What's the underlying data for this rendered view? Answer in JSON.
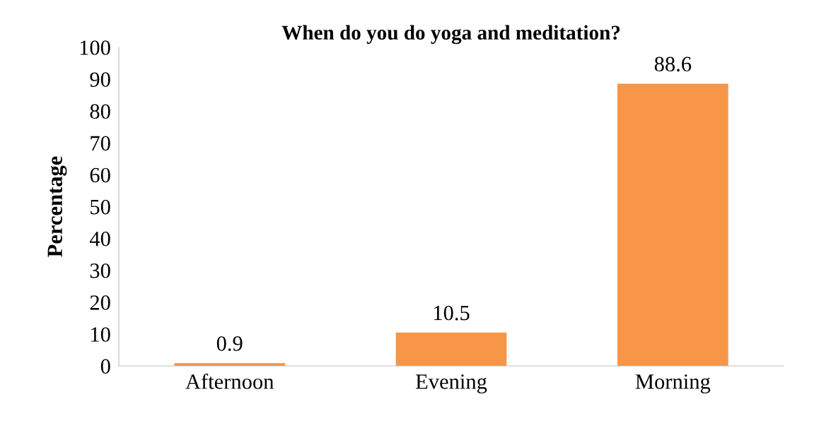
{
  "chart_data": {
    "type": "bar",
    "title": "When do you do yoga and meditation?",
    "ylabel": "Percentage",
    "categories": [
      "Afternoon",
      "Evening",
      "Morning"
    ],
    "values": [
      0.9,
      10.5,
      88.6
    ],
    "color": "#f79646",
    "ylim": [
      0,
      100
    ],
    "yticks": [
      0,
      10,
      20,
      30,
      40,
      50,
      60,
      70,
      80,
      90,
      100
    ],
    "grid": false,
    "data_labels": true
  }
}
